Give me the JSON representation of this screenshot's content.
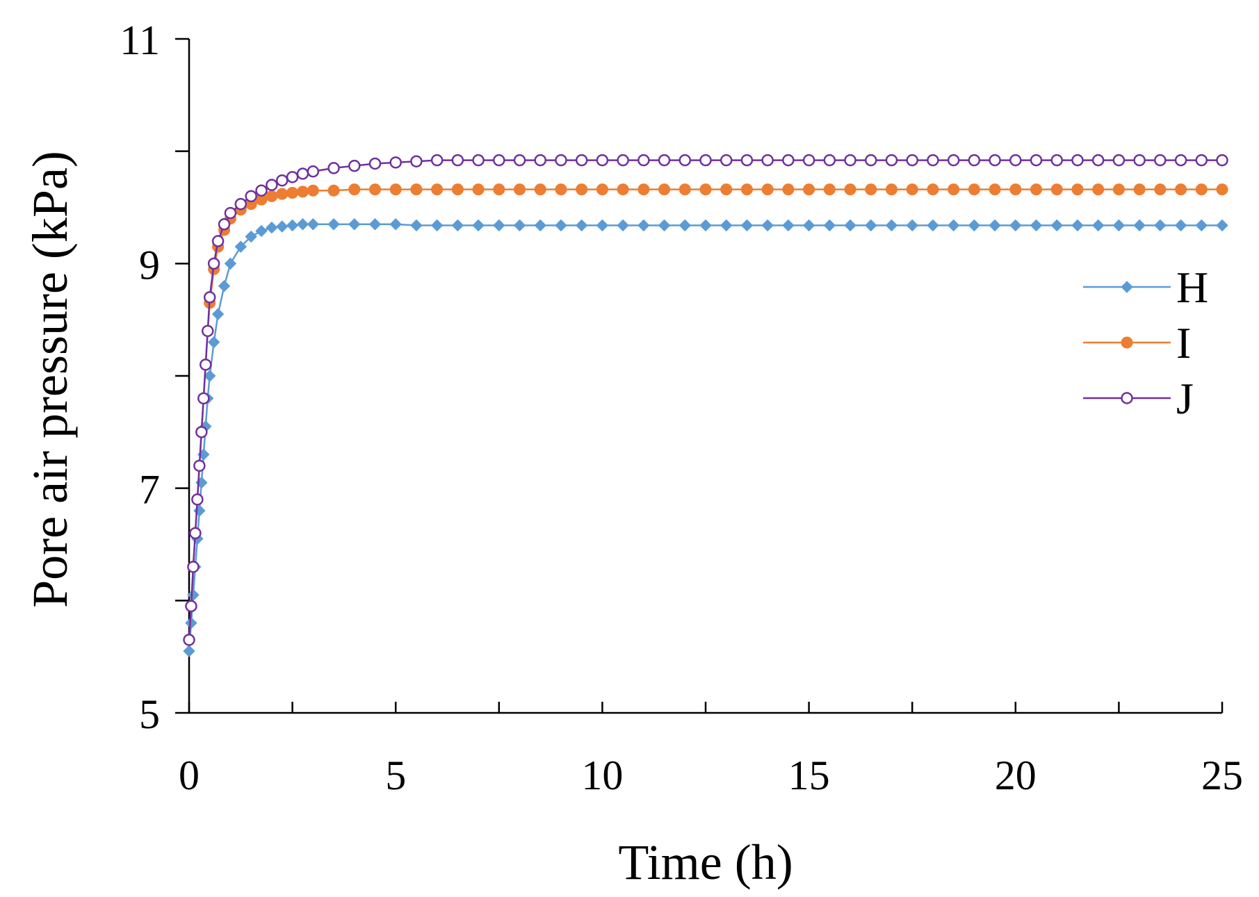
{
  "chart_data": {
    "type": "line",
    "title": "",
    "xlabel": "Time (h)",
    "ylabel": "Pore air pressure (kPa)",
    "xlim": [
      0,
      25
    ],
    "ylim": [
      5,
      11
    ],
    "xticks": [
      0,
      5,
      10,
      15,
      20,
      25
    ],
    "xtick_labels": [
      "0",
      "5",
      "10",
      "15",
      "20",
      "25"
    ],
    "xminor_step": 2.5,
    "yticks": [
      5,
      7,
      9,
      11
    ],
    "ytick_labels": [
      "5",
      "7",
      "9",
      "11"
    ],
    "yminor_step": 1,
    "grid": false,
    "legend_position": "right",
    "x": [
      0.0,
      0.05,
      0.1,
      0.15,
      0.2,
      0.25,
      0.3,
      0.35,
      0.4,
      0.45,
      0.5,
      0.6,
      0.7,
      0.85,
      1.0,
      1.25,
      1.5,
      1.75,
      2.0,
      2.25,
      2.5,
      2.75,
      3.0,
      3.5,
      4.0,
      4.5,
      5.0,
      5.5,
      6.0,
      6.5,
      7.0,
      7.5,
      8.0,
      8.5,
      9.0,
      9.5,
      10.0,
      10.5,
      11.0,
      11.5,
      12.0,
      12.5,
      13.0,
      13.5,
      14.0,
      14.5,
      15.0,
      15.5,
      16.0,
      16.5,
      17.0,
      17.5,
      18.0,
      18.5,
      19.0,
      19.5,
      20.0,
      20.5,
      21.0,
      21.5,
      22.0,
      22.5,
      23.0,
      23.5,
      24.0,
      24.5,
      25.0
    ],
    "series": [
      {
        "name": "H",
        "color": "#5B9BD5",
        "marker": "diamond",
        "values": [
          5.55,
          5.8,
          6.05,
          6.3,
          6.55,
          6.8,
          7.05,
          7.3,
          7.55,
          7.8,
          8.0,
          8.3,
          8.55,
          8.8,
          9.0,
          9.15,
          9.24,
          9.29,
          9.32,
          9.33,
          9.34,
          9.35,
          9.35,
          9.35,
          9.35,
          9.35,
          9.35,
          9.34,
          9.34,
          9.34,
          9.34,
          9.34,
          9.34,
          9.34,
          9.34,
          9.34,
          9.34,
          9.34,
          9.34,
          9.34,
          9.34,
          9.34,
          9.34,
          9.34,
          9.34,
          9.34,
          9.34,
          9.34,
          9.34,
          9.34,
          9.34,
          9.34,
          9.34,
          9.34,
          9.34,
          9.34,
          9.34,
          9.34,
          9.34,
          9.34,
          9.34,
          9.34,
          9.34,
          9.34,
          9.34,
          9.34,
          9.34
        ]
      },
      {
        "name": "I",
        "color": "#ED7D31",
        "marker": "circle-filled",
        "values": [
          5.65,
          5.95,
          6.3,
          6.6,
          6.9,
          7.2,
          7.5,
          7.8,
          8.1,
          8.4,
          8.65,
          8.95,
          9.15,
          9.3,
          9.4,
          9.48,
          9.53,
          9.57,
          9.6,
          9.62,
          9.63,
          9.64,
          9.65,
          9.65,
          9.66,
          9.66,
          9.66,
          9.66,
          9.66,
          9.66,
          9.66,
          9.66,
          9.66,
          9.66,
          9.66,
          9.66,
          9.66,
          9.66,
          9.66,
          9.66,
          9.66,
          9.66,
          9.66,
          9.66,
          9.66,
          9.66,
          9.66,
          9.66,
          9.66,
          9.66,
          9.66,
          9.66,
          9.66,
          9.66,
          9.66,
          9.66,
          9.66,
          9.66,
          9.66,
          9.66,
          9.66,
          9.66,
          9.66,
          9.66,
          9.66,
          9.66,
          9.66
        ]
      },
      {
        "name": "J",
        "color": "#7030A0",
        "marker": "circle-open",
        "values": [
          5.65,
          5.95,
          6.3,
          6.6,
          6.9,
          7.2,
          7.5,
          7.8,
          8.1,
          8.4,
          8.7,
          9.0,
          9.2,
          9.35,
          9.45,
          9.53,
          9.6,
          9.65,
          9.7,
          9.74,
          9.77,
          9.8,
          9.82,
          9.85,
          9.87,
          9.89,
          9.9,
          9.91,
          9.92,
          9.92,
          9.92,
          9.92,
          9.92,
          9.92,
          9.92,
          9.92,
          9.92,
          9.92,
          9.92,
          9.92,
          9.92,
          9.92,
          9.92,
          9.92,
          9.92,
          9.92,
          9.92,
          9.92,
          9.92,
          9.92,
          9.92,
          9.92,
          9.92,
          9.92,
          9.92,
          9.92,
          9.92,
          9.92,
          9.92,
          9.92,
          9.92,
          9.92,
          9.92,
          9.92,
          9.92,
          9.92,
          9.92
        ]
      }
    ]
  }
}
